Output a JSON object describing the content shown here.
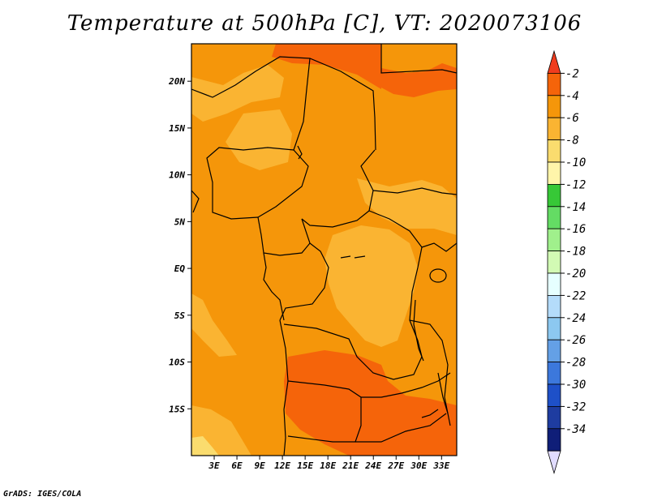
{
  "title": "Temperature at 500hPa [C], VT: 2020073106",
  "credit": "GrADS: IGES/COLA",
  "map": {
    "lat_labels": [
      "20N",
      "15N",
      "10N",
      "5N",
      "EQ",
      "5S",
      "10S",
      "15S"
    ],
    "lon_labels": [
      "3E",
      "6E",
      "9E",
      "12E",
      "15E",
      "18E",
      "21E",
      "24E",
      "27E",
      "30E",
      "33E"
    ],
    "lon_range": [
      0,
      35
    ],
    "lat_range": [
      -20,
      24
    ]
  },
  "colorbar": {
    "labels": [
      "-2",
      "-4",
      "-6",
      "-8",
      "-10",
      "-12",
      "-14",
      "-16",
      "-18",
      "-20",
      "-22",
      "-24",
      "-26",
      "-28",
      "-30",
      "-32",
      "-34"
    ],
    "colors": [
      "#f03c1e",
      "#f5640a",
      "#f5960a",
      "#fab432",
      "#fadc6e",
      "#fff5aa",
      "#37c837",
      "#64dc64",
      "#a0f08c",
      "#d2fab4",
      "#e6ffff",
      "#b4dcfa",
      "#8cc8f0",
      "#64a0e6",
      "#3c78dc",
      "#1e50c8",
      "#1e3ca0",
      "#0f1e78",
      "#e1dcff"
    ]
  }
}
